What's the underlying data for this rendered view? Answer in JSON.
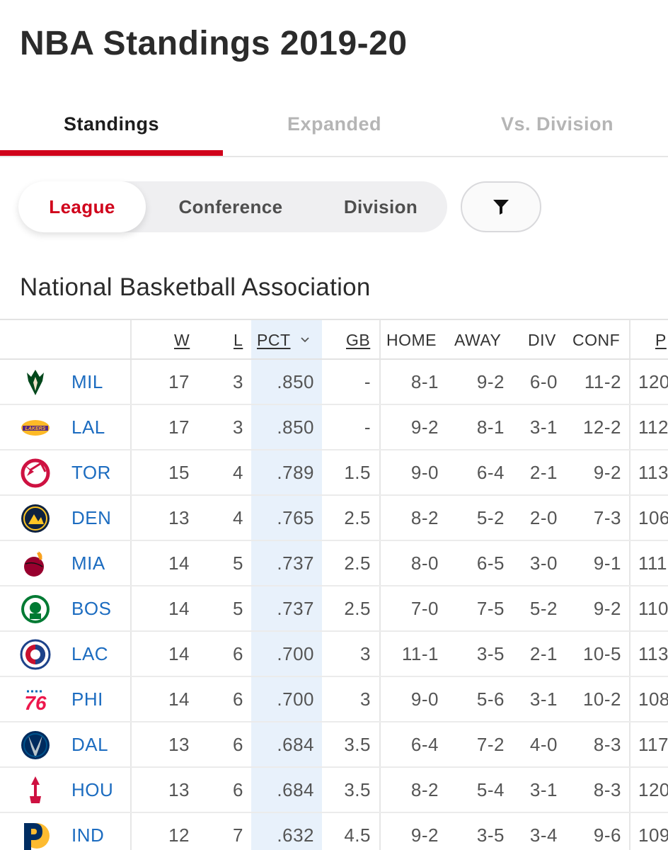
{
  "title": "NBA Standings 2019-20",
  "tabs": [
    "Standings",
    "Expanded",
    "Vs. Division"
  ],
  "segments": [
    "League",
    "Conference",
    "Division"
  ],
  "section_title": "National Basketball Association",
  "columns": {
    "w": "W",
    "l": "L",
    "pct": "PCT",
    "gb": "GB",
    "home": "HOME",
    "away": "AWAY",
    "div": "DIV",
    "conf": "CONF",
    "pf": "P"
  },
  "rows": [
    {
      "team": "MIL",
      "w": "17",
      "l": "3",
      "pct": ".850",
      "gb": "-",
      "home": "8-1",
      "away": "9-2",
      "div": "6-0",
      "conf": "11-2",
      "pf": "120"
    },
    {
      "team": "LAL",
      "w": "17",
      "l": "3",
      "pct": ".850",
      "gb": "-",
      "home": "9-2",
      "away": "8-1",
      "div": "3-1",
      "conf": "12-2",
      "pf": "112"
    },
    {
      "team": "TOR",
      "w": "15",
      "l": "4",
      "pct": ".789",
      "gb": "1.5",
      "home": "9-0",
      "away": "6-4",
      "div": "2-1",
      "conf": "9-2",
      "pf": "113"
    },
    {
      "team": "DEN",
      "w": "13",
      "l": "4",
      "pct": ".765",
      "gb": "2.5",
      "home": "8-2",
      "away": "5-2",
      "div": "2-0",
      "conf": "7-3",
      "pf": "106"
    },
    {
      "team": "MIA",
      "w": "14",
      "l": "5",
      "pct": ".737",
      "gb": "2.5",
      "home": "8-0",
      "away": "6-5",
      "div": "3-0",
      "conf": "9-1",
      "pf": "111"
    },
    {
      "team": "BOS",
      "w": "14",
      "l": "5",
      "pct": ".737",
      "gb": "2.5",
      "home": "7-0",
      "away": "7-5",
      "div": "5-2",
      "conf": "9-2",
      "pf": "110"
    },
    {
      "team": "LAC",
      "w": "14",
      "l": "6",
      "pct": ".700",
      "gb": "3",
      "home": "11-1",
      "away": "3-5",
      "div": "2-1",
      "conf": "10-5",
      "pf": "113"
    },
    {
      "team": "PHI",
      "w": "14",
      "l": "6",
      "pct": ".700",
      "gb": "3",
      "home": "9-0",
      "away": "5-6",
      "div": "3-1",
      "conf": "10-2",
      "pf": "108"
    },
    {
      "team": "DAL",
      "w": "13",
      "l": "6",
      "pct": ".684",
      "gb": "3.5",
      "home": "6-4",
      "away": "7-2",
      "div": "4-0",
      "conf": "8-3",
      "pf": "117"
    },
    {
      "team": "HOU",
      "w": "13",
      "l": "6",
      "pct": ".684",
      "gb": "3.5",
      "home": "8-2",
      "away": "5-4",
      "div": "3-1",
      "conf": "8-3",
      "pf": "120"
    },
    {
      "team": "IND",
      "w": "12",
      "l": "7",
      "pct": ".632",
      "gb": "4.5",
      "home": "9-2",
      "away": "3-5",
      "div": "3-4",
      "conf": "9-6",
      "pf": "109"
    }
  ],
  "logo_icons": [
    "bucks-logo-icon",
    "lakers-logo-icon",
    "raptors-logo-icon",
    "nuggets-logo-icon",
    "heat-logo-icon",
    "celtics-logo-icon",
    "clippers-logo-icon",
    "76ers-logo-icon",
    "mavericks-logo-icon",
    "rockets-logo-icon",
    "pacers-logo-icon"
  ],
  "colors": {
    "accent": "#d0021b",
    "link": "#1c6cc0",
    "pct_highlight": "#e8f1fb"
  }
}
